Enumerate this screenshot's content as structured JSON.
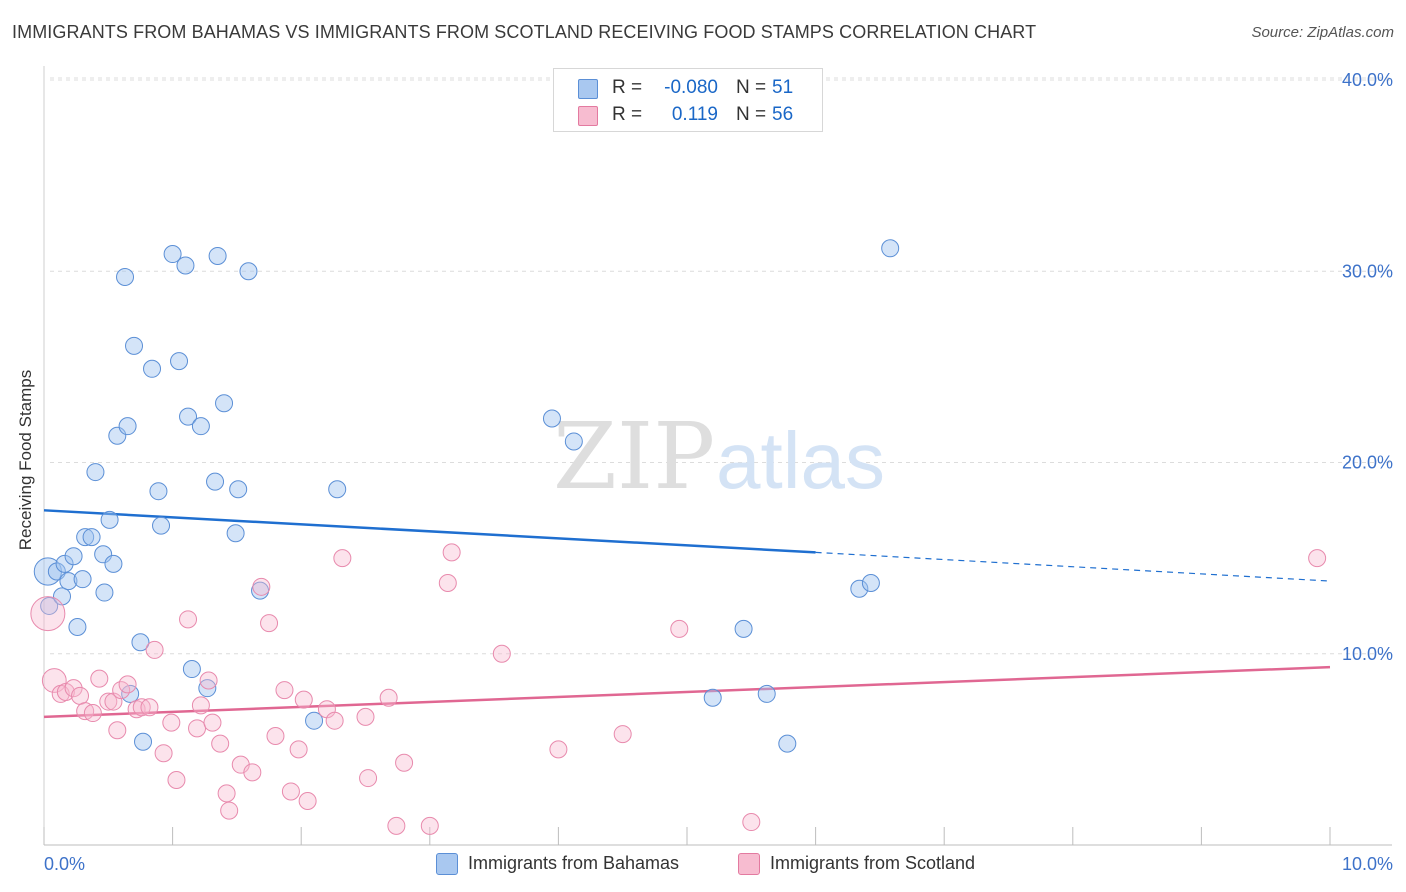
{
  "title": "IMMIGRANTS FROM BAHAMAS VS IMMIGRANTS FROM SCOTLAND RECEIVING FOOD STAMPS CORRELATION CHART",
  "source": "Source: ZipAtlas.com",
  "watermark": {
    "zip": "ZIP",
    "atlas": "atlas"
  },
  "stats": [
    {
      "r_label": "R =",
      "r_value": "-0.080",
      "n_label": "N =",
      "n_value": "51",
      "color": "#a9c8f0",
      "border": "#5b8fd6"
    },
    {
      "r_label": "R =",
      "r_value": "0.119",
      "n_label": "N =",
      "n_value": "56",
      "color": "#f7bcd0",
      "border": "#e37aa0"
    }
  ],
  "legend": [
    {
      "label": "Immigrants from Bahamas",
      "color": "#a9c8f0",
      "border": "#5b8fd6"
    },
    {
      "label": "Immigrants from Scotland",
      "color": "#f7bcd0",
      "border": "#e37aa0"
    }
  ],
  "colors": {
    "blue_line": "#1f6fd0",
    "pink_line": "#e06792",
    "axis_text": "#3d72c9",
    "grid": "#dcdcdc"
  },
  "chart_data": {
    "type": "scatter",
    "title": "IMMIGRANTS FROM BAHAMAS VS IMMIGRANTS FROM SCOTLAND RECEIVING FOOD STAMPS CORRELATION CHART",
    "xlabel": "",
    "ylabel": "Receiving Food Stamps",
    "xlim": [
      0,
      10
    ],
    "ylim": [
      0,
      40
    ],
    "x_tick_labels": [
      {
        "value": 0,
        "label": "0.0%"
      },
      {
        "value": 10,
        "label": "10.0%"
      }
    ],
    "y_tick_labels": [
      {
        "value": 10,
        "label": "10.0%"
      },
      {
        "value": 20,
        "label": "20.0%"
      },
      {
        "value": 30,
        "label": "30.0%"
      },
      {
        "value": 40,
        "label": "40.0%"
      }
    ],
    "grid": true,
    "legend_position": "bottom-center",
    "series": [
      {
        "name": "Immigrants from Bahamas",
        "r": -0.08,
        "n": 51,
        "trend": {
          "x_start": 0,
          "y_start": 17.5,
          "x_end_solid": 6.0,
          "y_end_solid": 15.3,
          "x_end_dashed": 10,
          "y_end_dashed": 13.8
        },
        "points": [
          [
            0.03,
            14.3,
            1.6
          ],
          [
            0.04,
            12.5,
            1.0
          ],
          [
            0.1,
            14.3,
            1.0
          ],
          [
            0.14,
            13.0,
            1.0
          ],
          [
            0.16,
            14.7,
            1.0
          ],
          [
            0.19,
            13.8,
            1.0
          ],
          [
            0.23,
            15.1,
            1.0
          ],
          [
            0.26,
            11.4,
            1.0
          ],
          [
            0.3,
            13.9,
            1.0
          ],
          [
            0.32,
            16.1,
            1.0
          ],
          [
            0.37,
            16.1,
            1.0
          ],
          [
            0.4,
            19.5,
            1.0
          ],
          [
            0.46,
            15.2,
            1.0
          ],
          [
            0.47,
            13.2,
            1.0
          ],
          [
            0.51,
            17.0,
            1.0
          ],
          [
            0.54,
            14.7,
            1.0
          ],
          [
            0.57,
            21.4,
            1.0
          ],
          [
            0.63,
            29.7,
            1.0
          ],
          [
            0.65,
            21.9,
            1.0
          ],
          [
            0.67,
            7.9,
            1.0
          ],
          [
            0.7,
            26.1,
            1.0
          ],
          [
            0.75,
            10.6,
            1.0
          ],
          [
            0.77,
            5.4,
            1.0
          ],
          [
            0.84,
            24.9,
            1.0
          ],
          [
            0.89,
            18.5,
            1.0
          ],
          [
            0.91,
            16.7,
            1.0
          ],
          [
            1.0,
            30.9,
            1.0
          ],
          [
            1.05,
            25.3,
            1.0
          ],
          [
            1.1,
            30.3,
            1.0
          ],
          [
            1.12,
            22.4,
            1.0
          ],
          [
            1.15,
            9.2,
            1.0
          ],
          [
            1.22,
            21.9,
            1.0
          ],
          [
            1.27,
            8.2,
            1.0
          ],
          [
            1.33,
            19.0,
            1.0
          ],
          [
            1.35,
            30.8,
            1.0
          ],
          [
            1.4,
            23.1,
            1.0
          ],
          [
            1.49,
            16.3,
            1.0
          ],
          [
            1.51,
            18.6,
            1.0
          ],
          [
            1.59,
            30.0,
            1.0
          ],
          [
            1.68,
            13.3,
            1.0
          ],
          [
            2.1,
            6.5,
            1.0
          ],
          [
            2.28,
            18.6,
            1.0
          ],
          [
            3.95,
            22.3,
            1.0
          ],
          [
            4.12,
            21.1,
            1.0
          ],
          [
            5.2,
            7.7,
            1.0
          ],
          [
            5.44,
            11.3,
            1.0
          ],
          [
            5.62,
            7.9,
            1.0
          ],
          [
            5.78,
            5.3,
            1.0
          ],
          [
            6.34,
            13.4,
            1.0
          ],
          [
            6.43,
            13.7,
            1.0
          ],
          [
            6.58,
            31.2,
            1.0
          ]
        ]
      },
      {
        "name": "Immigrants from Scotland",
        "r": 0.119,
        "n": 56,
        "trend": {
          "x_start": 0,
          "y_start": 6.7,
          "x_end_solid": 10,
          "y_end_solid": 9.3
        },
        "points": [
          [
            0.03,
            12.1,
            2.0
          ],
          [
            0.08,
            8.6,
            1.4
          ],
          [
            0.13,
            7.9,
            1.0
          ],
          [
            0.17,
            8.0,
            1.0
          ],
          [
            0.23,
            8.2,
            1.0
          ],
          [
            0.28,
            7.8,
            1.0
          ],
          [
            0.32,
            7.0,
            1.0
          ],
          [
            0.38,
            6.9,
            1.0
          ],
          [
            0.43,
            8.7,
            1.0
          ],
          [
            0.5,
            7.5,
            1.0
          ],
          [
            0.54,
            7.5,
            1.0
          ],
          [
            0.57,
            6.0,
            1.0
          ],
          [
            0.6,
            8.1,
            1.0
          ],
          [
            0.65,
            8.4,
            1.0
          ],
          [
            0.72,
            7.1,
            1.0
          ],
          [
            0.76,
            7.2,
            1.0
          ],
          [
            0.82,
            7.2,
            1.0
          ],
          [
            0.86,
            10.2,
            1.0
          ],
          [
            0.93,
            4.8,
            1.0
          ],
          [
            0.99,
            6.4,
            1.0
          ],
          [
            1.03,
            3.4,
            1.0
          ],
          [
            1.12,
            11.8,
            1.0
          ],
          [
            1.19,
            6.1,
            1.0
          ],
          [
            1.22,
            7.3,
            1.0
          ],
          [
            1.28,
            8.6,
            1.0
          ],
          [
            1.31,
            6.4,
            1.0
          ],
          [
            1.37,
            5.3,
            1.0
          ],
          [
            1.42,
            2.7,
            1.0
          ],
          [
            1.44,
            1.8,
            1.0
          ],
          [
            1.53,
            4.2,
            1.0
          ],
          [
            1.62,
            3.8,
            1.0
          ],
          [
            1.69,
            13.5,
            1.0
          ],
          [
            1.75,
            11.6,
            1.0
          ],
          [
            1.8,
            5.7,
            1.0
          ],
          [
            1.87,
            8.1,
            1.0
          ],
          [
            1.92,
            2.8,
            1.0
          ],
          [
            1.98,
            5.0,
            1.0
          ],
          [
            2.02,
            7.6,
            1.0
          ],
          [
            2.05,
            2.3,
            1.0
          ],
          [
            2.2,
            7.1,
            1.0
          ],
          [
            2.26,
            6.5,
            1.0
          ],
          [
            2.32,
            15.0,
            1.0
          ],
          [
            2.5,
            6.7,
            1.0
          ],
          [
            2.52,
            3.5,
            1.0
          ],
          [
            2.68,
            7.7,
            1.0
          ],
          [
            2.74,
            1.0,
            1.0
          ],
          [
            2.8,
            4.3,
            1.0
          ],
          [
            3.0,
            1.0,
            1.0
          ],
          [
            3.14,
            13.7,
            1.0
          ],
          [
            3.17,
            15.3,
            1.0
          ],
          [
            3.56,
            10.0,
            1.0
          ],
          [
            4.0,
            5.0,
            1.0
          ],
          [
            4.5,
            5.8,
            1.0
          ],
          [
            4.94,
            11.3,
            1.0
          ],
          [
            5.5,
            1.2,
            1.0
          ],
          [
            9.9,
            15.0,
            1.0
          ]
        ]
      }
    ]
  }
}
